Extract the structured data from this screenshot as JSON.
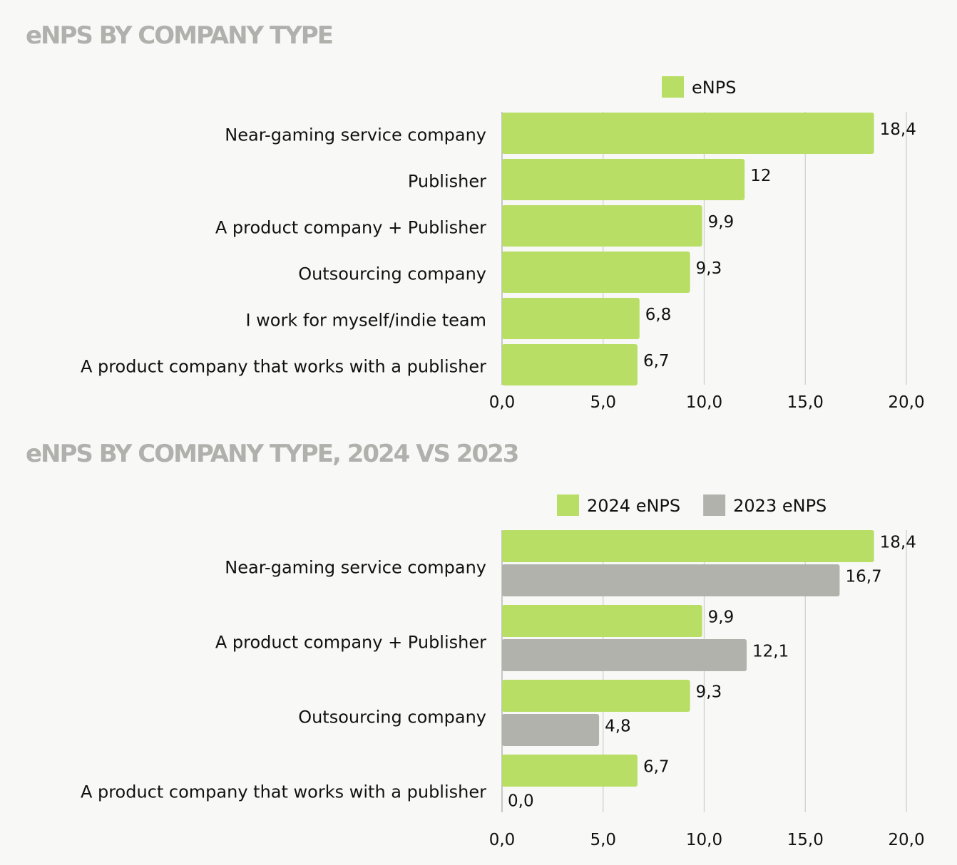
{
  "chart_data": [
    {
      "type": "bar",
      "orientation": "horizontal",
      "title": "eNPS BY COMPANY TYPE",
      "categories": [
        "Near-gaming service company",
        "Publisher",
        "A product company + Publisher",
        "Outsourcing company",
        "I work for myself/indie team",
        "A product company that works with a publisher"
      ],
      "series": [
        {
          "name": "eNPS",
          "color": "#b9de65",
          "values": [
            18.4,
            12,
            9.9,
            9.3,
            6.8,
            6.7
          ],
          "labels": [
            "18,4",
            "12",
            "9,9",
            "9,3",
            "6,8",
            "6,7"
          ]
        }
      ],
      "xlim": [
        0,
        20
      ],
      "xticks": [
        "0,0",
        "5,0",
        "10,0",
        "15,0",
        "20,0"
      ],
      "grid": true,
      "legend": "top-right"
    },
    {
      "type": "bar",
      "orientation": "horizontal",
      "title": "eNPS BY COMPANY TYPE, 2024 VS 2023",
      "categories": [
        "Near-gaming service company",
        "A product company + Publisher",
        "Outsourcing company",
        "A product company that works with a publisher"
      ],
      "series": [
        {
          "name": "2024 eNPS",
          "color": "#b9de65",
          "values": [
            18.4,
            9.9,
            9.3,
            6.7
          ],
          "labels": [
            "18,4",
            "9,9",
            "9,3",
            "6,7"
          ]
        },
        {
          "name": "2023 eNPS",
          "color": "#b2b2ad",
          "values": [
            16.7,
            12.1,
            4.8,
            0.0
          ],
          "labels": [
            "16,7",
            "12,1",
            "4,8",
            "0,0"
          ]
        }
      ],
      "xlim": [
        0,
        20
      ],
      "xticks": [
        "0,0",
        "5,0",
        "10,0",
        "15,0",
        "20,0"
      ],
      "grid": true,
      "legend": "top-right"
    }
  ]
}
